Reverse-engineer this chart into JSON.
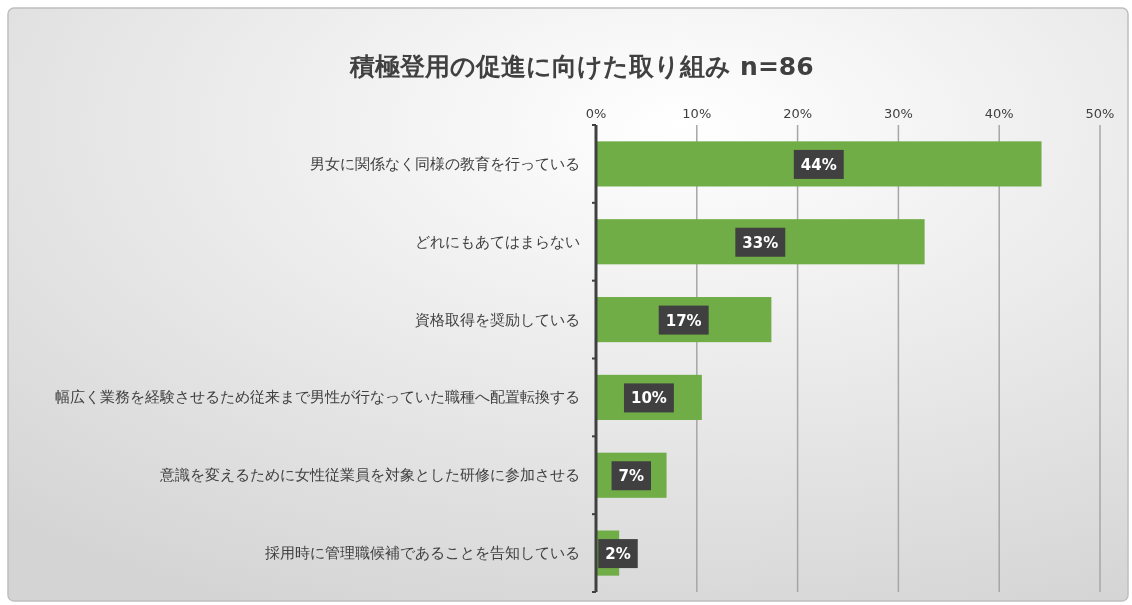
{
  "chart_data": {
    "type": "bar",
    "orientation": "horizontal",
    "title": "積極登用の促進に向けた取り組み n=86",
    "categories": [
      "男女に関係なく同様の教育を行っている",
      "どれにもあてはまらない",
      "資格取得を奨励している",
      "幅広く業務を経験させるため従来まで男性が行なっていた職種へ配置転換する",
      "意識を変えるために女性従業員を対象とした研修に参加させる",
      "採用時に管理職候補であることを告知している"
    ],
    "values": [
      44.2,
      32.6,
      17.4,
      10.5,
      7.0,
      2.3
    ],
    "value_labels": [
      "44%",
      "33%",
      "17%",
      "10%",
      "7%",
      "2%"
    ],
    "color": "#70ad47",
    "xlim": [
      0,
      50
    ],
    "xticks": [
      {
        "value": 0,
        "label": "0%"
      },
      {
        "value": 10,
        "label": "10%"
      },
      {
        "value": 20,
        "label": "20%"
      },
      {
        "value": 30,
        "label": "30%"
      },
      {
        "value": 40,
        "label": "40%"
      },
      {
        "value": 50,
        "label": "50%"
      }
    ],
    "grid": "x"
  }
}
